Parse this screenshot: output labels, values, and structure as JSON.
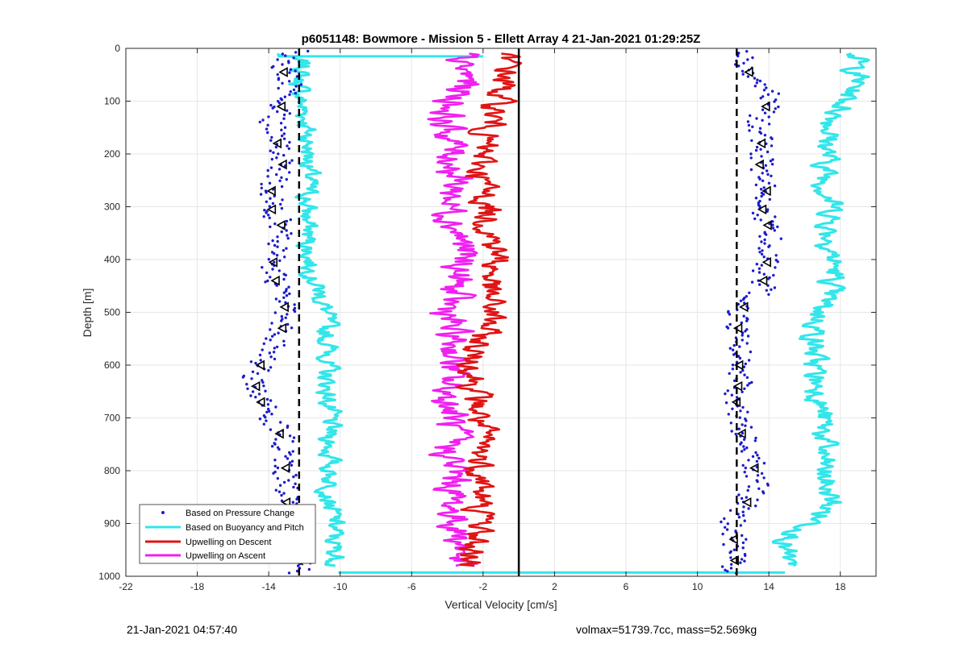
{
  "chart_data": {
    "type": "scatter",
    "title": "p6051148: Bowmore - Mission 5 - Ellett Array 4 21-Jan-2021 01:29:25Z",
    "xlabel": "Vertical Velocity [cm/s]",
    "ylabel": "Depth [m]",
    "xlim": [
      -22,
      20
    ],
    "ylim": [
      0,
      1000
    ],
    "y_reversed": true,
    "grid": true,
    "xticks": [
      -22,
      -18,
      -14,
      -10,
      -6,
      -2,
      2,
      6,
      10,
      14,
      18
    ],
    "yticks": [
      0,
      100,
      200,
      300,
      400,
      500,
      600,
      700,
      800,
      900,
      1000
    ],
    "legend": {
      "placement": "bottom-left",
      "entries": [
        "Based on Pressure Change",
        "Based on Buoyancy and Pitch",
        "Upwelling on Descent",
        "Upwelling on Ascent"
      ]
    },
    "colors": {
      "pressure": "#1c1ccc",
      "buoyancy": "#33e6ea",
      "descent": "#e01414",
      "ascent": "#f020f0",
      "reference": "#000000"
    },
    "reference_lines": {
      "solid": 0,
      "dashed": [
        -12.3,
        12.2
      ]
    },
    "series": [
      {
        "name": "Based on Pressure Change",
        "depth": [
          10,
          30,
          60,
          100,
          140,
          180,
          220,
          260,
          300,
          340,
          380,
          420,
          460,
          500,
          540,
          580,
          620,
          660,
          700,
          740,
          780,
          820,
          860,
          900,
          940,
          980
        ],
        "descent_velocity": [
          -12.5,
          -13.5,
          -12.8,
          -13.1,
          -13.8,
          -13.5,
          -13.2,
          -13.8,
          -13.9,
          -13.2,
          -13.6,
          -13.8,
          -13.4,
          -13.0,
          -13.3,
          -14.1,
          -14.8,
          -14.6,
          -13.9,
          -13.2,
          -13.0,
          -13.1,
          -13.0,
          -12.6,
          -12.6,
          -12.2
        ],
        "ascent_velocity": [
          13.0,
          12.2,
          13.6,
          14.0,
          13.4,
          13.6,
          13.5,
          14.0,
          13.6,
          14.0,
          14.1,
          13.8,
          13.6,
          12.3,
          12.3,
          12.3,
          12.4,
          12.2,
          12.2,
          12.6,
          13.1,
          13.4,
          12.8,
          11.9,
          12.1,
          12.1
        ]
      },
      {
        "name": "Based on Buoyancy and Pitch",
        "depth": [
          10,
          30,
          60,
          100,
          140,
          180,
          220,
          260,
          300,
          340,
          380,
          420,
          460,
          500,
          540,
          580,
          620,
          660,
          700,
          740,
          780,
          820,
          860,
          900,
          940,
          980
        ],
        "descent_velocity": [
          -13.5,
          -12.0,
          -12.3,
          -12.2,
          -11.9,
          -11.8,
          -11.7,
          -11.8,
          -11.9,
          -11.8,
          -11.8,
          -11.6,
          -11.2,
          -10.8,
          -10.8,
          -10.6,
          -10.8,
          -10.7,
          -10.6,
          -10.6,
          -10.6,
          -10.5,
          -10.6,
          -10.3,
          -10.4,
          -10.1
        ],
        "ascent_velocity": [
          19.0,
          18.8,
          19.0,
          18.3,
          17.6,
          17.3,
          17.2,
          17.2,
          17.6,
          17.4,
          17.5,
          17.7,
          17.3,
          16.9,
          16.6,
          16.5,
          16.6,
          16.9,
          17.0,
          17.1,
          17.0,
          17.1,
          17.5,
          16.5,
          14.8,
          14.9
        ]
      },
      {
        "name": "Upwelling on Descent",
        "depth": [
          10,
          30,
          60,
          100,
          140,
          180,
          220,
          260,
          300,
          340,
          380,
          420,
          460,
          500,
          540,
          580,
          620,
          660,
          700,
          740,
          780,
          820,
          860,
          900,
          940,
          980
        ],
        "values": [
          -1.0,
          -0.6,
          -0.8,
          -1.2,
          -1.5,
          -2.0,
          -2.2,
          -2.0,
          -1.8,
          -1.6,
          -1.2,
          -1.4,
          -1.8,
          -1.4,
          -2.0,
          -2.6,
          -2.5,
          -2.4,
          -2.2,
          -2.1,
          -2.2,
          -2.0,
          -2.3,
          -2.0,
          -2.6,
          -2.6
        ]
      },
      {
        "name": "Upwelling on Ascent",
        "depth": [
          10,
          30,
          60,
          100,
          140,
          180,
          220,
          260,
          300,
          340,
          380,
          420,
          460,
          500,
          540,
          580,
          620,
          660,
          700,
          740,
          780,
          820,
          860,
          900,
          940,
          980
        ],
        "values": [
          -3.0,
          -3.5,
          -2.8,
          -3.6,
          -4.2,
          -3.7,
          -3.6,
          -3.5,
          -3.8,
          -3.4,
          -3.1,
          -3.4,
          -3.7,
          -4.0,
          -3.8,
          -3.5,
          -3.9,
          -4.0,
          -3.7,
          -3.9,
          -3.8,
          -3.6,
          -3.8,
          -3.5,
          -3.2,
          -3.3
        ]
      }
    ]
  },
  "footer": {
    "timestamp": "21-Jan-2021 04:57:40",
    "vol_mass": "volmax=51739.7cc, mass=52.569kg"
  }
}
